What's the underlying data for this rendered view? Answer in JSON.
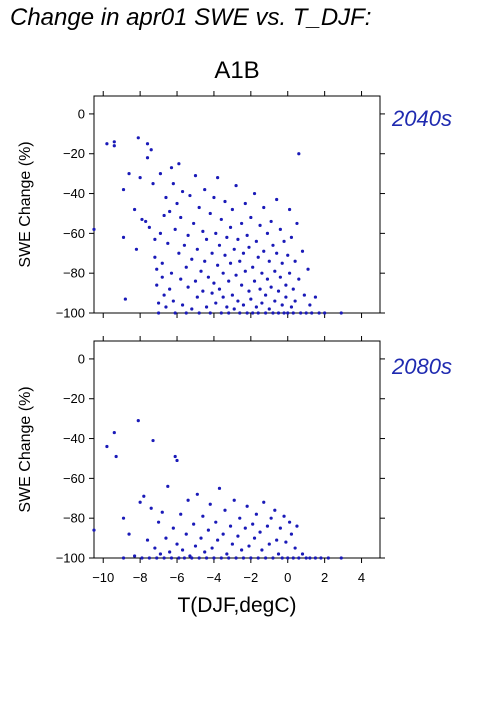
{
  "title": "Change in apr01 SWE vs. T_DJF:",
  "scenario": "A1B",
  "colors": {
    "points": "#1a1ab8",
    "period_label": "#1f2ab0"
  },
  "chart_data": [
    {
      "type": "scatter",
      "period": "2040s",
      "xlabel": "",
      "ylabel": "SWE Change (%)",
      "xlim": [
        -10.5,
        5
      ],
      "ylim": [
        -100,
        9
      ],
      "yticks": [
        0,
        -20,
        -40,
        -60,
        -80,
        -100
      ],
      "xticks": [
        -10,
        -8,
        -6,
        -4,
        -2,
        0,
        2,
        4
      ],
      "show_xtick_labels": false,
      "grid": false,
      "points": [
        [
          -10.5,
          -58
        ],
        [
          -9.8,
          -15
        ],
        [
          -9.4,
          -14
        ],
        [
          -9.4,
          -16
        ],
        [
          -8.9,
          -38
        ],
        [
          -8.9,
          -62
        ],
        [
          -8.8,
          -93
        ],
        [
          -8.6,
          -30
        ],
        [
          -8.3,
          -48
        ],
        [
          -8.2,
          -68
        ],
        [
          -8.1,
          -12
        ],
        [
          -8.0,
          -32
        ],
        [
          -7.9,
          -53
        ],
        [
          -7.7,
          -54
        ],
        [
          -7.6,
          -15
        ],
        [
          -7.6,
          -22
        ],
        [
          -7.5,
          -57
        ],
        [
          -7.4,
          -18
        ],
        [
          -7.3,
          -35
        ],
        [
          -7.2,
          -63
        ],
        [
          -7.2,
          -72
        ],
        [
          -7.1,
          -78
        ],
        [
          -7.1,
          -86
        ],
        [
          -7.0,
          -95
        ],
        [
          -7.0,
          -100
        ],
        [
          -6.9,
          -30
        ],
        [
          -6.9,
          -60
        ],
        [
          -6.8,
          -75
        ],
        [
          -6.8,
          -82
        ],
        [
          -6.7,
          -51
        ],
        [
          -6.7,
          -91
        ],
        [
          -6.6,
          -42
        ],
        [
          -6.6,
          -97
        ],
        [
          -6.5,
          -65
        ],
        [
          -6.4,
          -49
        ],
        [
          -6.4,
          -88
        ],
        [
          -6.3,
          -27
        ],
        [
          -6.3,
          -80
        ],
        [
          -6.2,
          -35
        ],
        [
          -6.2,
          -94
        ],
        [
          -6.1,
          -58
        ],
        [
          -6.1,
          -100
        ],
        [
          -6.0,
          -45
        ],
        [
          -5.9,
          -70
        ],
        [
          -5.9,
          -25
        ],
        [
          -5.8,
          -83
        ],
        [
          -5.8,
          -52
        ],
        [
          -5.7,
          -96
        ],
        [
          -5.7,
          -39
        ],
        [
          -5.6,
          -66
        ],
        [
          -5.5,
          -77
        ],
        [
          -5.5,
          -100
        ],
        [
          -5.4,
          -61
        ],
        [
          -5.4,
          -87
        ],
        [
          -5.3,
          -41
        ],
        [
          -5.2,
          -73
        ],
        [
          -5.2,
          -98
        ],
        [
          -5.1,
          -55
        ],
        [
          -5.0,
          -84
        ],
        [
          -5.0,
          -31
        ],
        [
          -4.9,
          -68
        ],
        [
          -4.9,
          -92
        ],
        [
          -4.8,
          -47
        ],
        [
          -4.8,
          -100
        ],
        [
          -4.7,
          -79
        ],
        [
          -4.6,
          -59
        ],
        [
          -4.6,
          -89
        ],
        [
          -4.5,
          -38
        ],
        [
          -4.5,
          -74
        ],
        [
          -4.4,
          -97
        ],
        [
          -4.4,
          -63
        ],
        [
          -4.3,
          -82
        ],
        [
          -4.2,
          -50
        ],
        [
          -4.2,
          -100
        ],
        [
          -4.1,
          -70
        ],
        [
          -4.1,
          -90
        ],
        [
          -4.0,
          -42
        ],
        [
          -4.0,
          -85
        ],
        [
          -3.9,
          -60
        ],
        [
          -3.9,
          -95
        ],
        [
          -3.8,
          -76
        ],
        [
          -3.8,
          -32
        ],
        [
          -3.7,
          -88
        ],
        [
          -3.7,
          -66
        ],
        [
          -3.6,
          -100
        ],
        [
          -3.6,
          -53
        ],
        [
          -3.5,
          -80
        ],
        [
          -3.5,
          -92
        ],
        [
          -3.4,
          -71
        ],
        [
          -3.4,
          -44
        ],
        [
          -3.3,
          -97
        ],
        [
          -3.3,
          -62
        ],
        [
          -3.2,
          -84
        ],
        [
          -3.2,
          -100
        ],
        [
          -3.1,
          -57
        ],
        [
          -3.1,
          -75
        ],
        [
          -3.0,
          -91
        ],
        [
          -3.0,
          -48
        ],
        [
          -2.9,
          -68
        ],
        [
          -2.9,
          -98
        ],
        [
          -2.8,
          -81
        ],
        [
          -2.8,
          -36
        ],
        [
          -2.7,
          -63
        ],
        [
          -2.7,
          -94
        ],
        [
          -2.6,
          -74
        ],
        [
          -2.6,
          -100
        ],
        [
          -2.5,
          -55
        ],
        [
          -2.5,
          -86
        ],
        [
          -2.4,
          -70
        ],
        [
          -2.4,
          -96
        ],
        [
          -2.3,
          -45
        ],
        [
          -2.3,
          -79
        ],
        [
          -2.2,
          -61
        ],
        [
          -2.2,
          -100
        ],
        [
          -2.1,
          -89
        ],
        [
          -2.1,
          -67
        ],
        [
          -2.0,
          -52
        ],
        [
          -2.0,
          -93
        ],
        [
          -1.9,
          -77
        ],
        [
          -1.9,
          -100
        ],
        [
          -1.8,
          -40
        ],
        [
          -1.8,
          -84
        ],
        [
          -1.7,
          -64
        ],
        [
          -1.7,
          -97
        ],
        [
          -1.6,
          -72
        ],
        [
          -1.6,
          -100
        ],
        [
          -1.5,
          -56
        ],
        [
          -1.5,
          -88
        ],
        [
          -1.4,
          -80
        ],
        [
          -1.4,
          -95
        ],
        [
          -1.3,
          -47
        ],
        [
          -1.3,
          -69
        ],
        [
          -1.2,
          -91
        ],
        [
          -1.2,
          -100
        ],
        [
          -1.1,
          -60
        ],
        [
          -1.1,
          -83
        ],
        [
          -1.0,
          -74
        ],
        [
          -1.0,
          -98
        ],
        [
          -0.9,
          -54
        ],
        [
          -0.9,
          -87
        ],
        [
          -0.8,
          -66
        ],
        [
          -0.8,
          -100
        ],
        [
          -0.7,
          -79
        ],
        [
          -0.7,
          -94
        ],
        [
          -0.6,
          -43
        ],
        [
          -0.6,
          -70
        ],
        [
          -0.5,
          -89
        ],
        [
          -0.5,
          -100
        ],
        [
          -0.4,
          -58
        ],
        [
          -0.4,
          -82
        ],
        [
          -0.3,
          -96
        ],
        [
          -0.3,
          -75
        ],
        [
          -0.2,
          -64
        ],
        [
          -0.2,
          -100
        ],
        [
          -0.1,
          -86
        ],
        [
          -0.1,
          -92
        ],
        [
          0.0,
          -71
        ],
        [
          0.0,
          -100
        ],
        [
          0.1,
          -48
        ],
        [
          0.1,
          -80
        ],
        [
          0.2,
          -97
        ],
        [
          0.2,
          -62
        ],
        [
          0.3,
          -88
        ],
        [
          0.3,
          -100
        ],
        [
          0.4,
          -74
        ],
        [
          0.4,
          -94
        ],
        [
          0.5,
          -55
        ],
        [
          0.6,
          -20
        ],
        [
          0.6,
          -83
        ],
        [
          0.7,
          -100
        ],
        [
          0.8,
          -69
        ],
        [
          0.9,
          -91
        ],
        [
          1.0,
          -100
        ],
        [
          1.1,
          -78
        ],
        [
          1.2,
          -96
        ],
        [
          1.3,
          -100
        ],
        [
          1.5,
          -92
        ],
        [
          1.7,
          -100
        ],
        [
          2.0,
          -100
        ],
        [
          2.9,
          -100
        ]
      ]
    },
    {
      "type": "scatter",
      "period": "2080s",
      "xlabel": "T(DJF,degC)",
      "ylabel": "SWE Change (%)",
      "xlim": [
        -10.5,
        5
      ],
      "ylim": [
        -100,
        9
      ],
      "yticks": [
        0,
        -20,
        -40,
        -60,
        -80,
        -100
      ],
      "xticks": [
        -10,
        -8,
        -6,
        -4,
        -2,
        0,
        2,
        4
      ],
      "xtick_labels": [
        "−10",
        "−8",
        "−6",
        "−4",
        "−2",
        "0",
        "2",
        "4"
      ],
      "grid": false,
      "points": [
        [
          -10.5,
          -86
        ],
        [
          -9.8,
          -44
        ],
        [
          -9.4,
          -37
        ],
        [
          -9.3,
          -49
        ],
        [
          -8.9,
          -80
        ],
        [
          -8.9,
          -100
        ],
        [
          -8.6,
          -88
        ],
        [
          -8.3,
          -99
        ],
        [
          -8.1,
          -31
        ],
        [
          -8.0,
          -72
        ],
        [
          -7.9,
          -100
        ],
        [
          -7.8,
          -69
        ],
        [
          -7.6,
          -91
        ],
        [
          -7.5,
          -100
        ],
        [
          -7.4,
          -75
        ],
        [
          -7.3,
          -41
        ],
        [
          -7.2,
          -95
        ],
        [
          -7.1,
          -100
        ],
        [
          -7.0,
          -82
        ],
        [
          -6.9,
          -98
        ],
        [
          -6.8,
          -77
        ],
        [
          -6.7,
          -100
        ],
        [
          -6.6,
          -90
        ],
        [
          -6.5,
          -64
        ],
        [
          -6.4,
          -97
        ],
        [
          -6.3,
          -100
        ],
        [
          -6.2,
          -85
        ],
        [
          -6.1,
          -49
        ],
        [
          -6.0,
          -93
        ],
        [
          -6.0,
          -51
        ],
        [
          -5.9,
          -100
        ],
        [
          -5.8,
          -78
        ],
        [
          -5.7,
          -96
        ],
        [
          -5.6,
          -100
        ],
        [
          -5.5,
          -88
        ],
        [
          -5.4,
          -71
        ],
        [
          -5.3,
          -99
        ],
        [
          -5.2,
          -100
        ],
        [
          -5.1,
          -83
        ],
        [
          -5.0,
          -94
        ],
        [
          -4.9,
          -68
        ],
        [
          -4.8,
          -100
        ],
        [
          -4.7,
          -90
        ],
        [
          -4.6,
          -79
        ],
        [
          -4.5,
          -97
        ],
        [
          -4.4,
          -100
        ],
        [
          -4.3,
          -86
        ],
        [
          -4.2,
          -73
        ],
        [
          -4.1,
          -95
        ],
        [
          -4.0,
          -100
        ],
        [
          -3.9,
          -82
        ],
        [
          -3.8,
          -91
        ],
        [
          -3.7,
          -65
        ],
        [
          -3.6,
          -100
        ],
        [
          -3.5,
          -88
        ],
        [
          -3.4,
          -76
        ],
        [
          -3.3,
          -98
        ],
        [
          -3.2,
          -100
        ],
        [
          -3.1,
          -84
        ],
        [
          -3.0,
          -93
        ],
        [
          -2.9,
          -71
        ],
        [
          -2.8,
          -100
        ],
        [
          -2.7,
          -89
        ],
        [
          -2.6,
          -80
        ],
        [
          -2.5,
          -96
        ],
        [
          -2.4,
          -100
        ],
        [
          -2.3,
          -85
        ],
        [
          -2.2,
          -74
        ],
        [
          -2.1,
          -94
        ],
        [
          -2.0,
          -100
        ],
        [
          -1.9,
          -83
        ],
        [
          -1.8,
          -90
        ],
        [
          -1.7,
          -78
        ],
        [
          -1.6,
          -100
        ],
        [
          -1.5,
          -87
        ],
        [
          -1.4,
          -96
        ],
        [
          -1.3,
          -72
        ],
        [
          -1.2,
          -100
        ],
        [
          -1.1,
          -84
        ],
        [
          -1.0,
          -93
        ],
        [
          -0.9,
          -80
        ],
        [
          -0.8,
          -100
        ],
        [
          -0.7,
          -76
        ],
        [
          -0.6,
          -91
        ],
        [
          -0.5,
          -98
        ],
        [
          -0.4,
          -85
        ],
        [
          -0.3,
          -100
        ],
        [
          -0.2,
          -79
        ],
        [
          -0.1,
          -92
        ],
        [
          0.0,
          -100
        ],
        [
          0.1,
          -82
        ],
        [
          0.2,
          -88
        ],
        [
          0.3,
          -100
        ],
        [
          0.4,
          -95
        ],
        [
          0.5,
          -84
        ],
        [
          0.6,
          -100
        ],
        [
          0.8,
          -98
        ],
        [
          1.0,
          -100
        ],
        [
          1.2,
          -100
        ],
        [
          1.5,
          -100
        ],
        [
          1.8,
          -100
        ],
        [
          2.2,
          -100
        ],
        [
          2.9,
          -100
        ]
      ]
    }
  ]
}
